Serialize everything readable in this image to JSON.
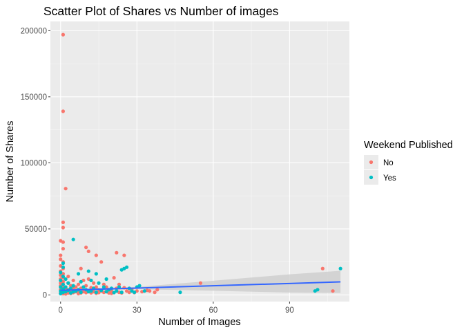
{
  "chart_data": {
    "type": "scatter",
    "title": "Scatter Plot of Shares vs Number of images",
    "xlabel": "Number of Images",
    "ylabel": "Number of Shares",
    "xlim": [
      -4,
      113.5
    ],
    "ylim": [
      -5000,
      207000
    ],
    "x_ticks": [
      0,
      30,
      60,
      90
    ],
    "x_tick_labels": [
      "0",
      "30",
      "60",
      "90"
    ],
    "y_ticks": [
      0,
      50000,
      100000,
      150000,
      200000
    ],
    "y_tick_labels": [
      "0",
      "50000",
      "100000",
      "150000",
      "200000"
    ],
    "grid": true,
    "legend": {
      "title": "Weekend Published",
      "position": "right",
      "entries": [
        {
          "label": "No",
          "color": "#F8766D"
        },
        {
          "label": "Yes",
          "color": "#00BFC4"
        }
      ]
    },
    "series": [
      {
        "name": "No",
        "color": "#F8766D",
        "points": [
          [
            1,
            197000
          ],
          [
            1,
            139000
          ],
          [
            2,
            80500
          ],
          [
            1,
            55000
          ],
          [
            1,
            51000
          ],
          [
            0,
            41000
          ],
          [
            1,
            40000
          ],
          [
            1,
            35000
          ],
          [
            0,
            30000
          ],
          [
            0,
            27000
          ],
          [
            1,
            25000
          ],
          [
            0,
            22000
          ],
          [
            1,
            20000
          ],
          [
            0,
            18000
          ],
          [
            1,
            16000
          ],
          [
            0,
            15000
          ],
          [
            1,
            13000
          ],
          [
            0,
            12000
          ],
          [
            1,
            10000
          ],
          [
            0,
            9000
          ],
          [
            1,
            8000
          ],
          [
            0,
            7000
          ],
          [
            1,
            6000
          ],
          [
            2,
            5000
          ],
          [
            0,
            4000
          ],
          [
            1,
            3000
          ],
          [
            2,
            2000
          ],
          [
            0,
            1500
          ],
          [
            1,
            1000
          ],
          [
            2,
            800
          ],
          [
            3,
            14000
          ],
          [
            3,
            9000
          ],
          [
            3,
            4000
          ],
          [
            3,
            1500
          ],
          [
            4,
            7000
          ],
          [
            4,
            3500
          ],
          [
            4,
            1200
          ],
          [
            5,
            11000
          ],
          [
            5,
            5000
          ],
          [
            5,
            1800
          ],
          [
            6,
            6000
          ],
          [
            6,
            2500
          ],
          [
            7,
            8000
          ],
          [
            7,
            3000
          ],
          [
            7,
            1000
          ],
          [
            8,
            20000
          ],
          [
            8,
            5000
          ],
          [
            8,
            1500
          ],
          [
            9,
            11000
          ],
          [
            9,
            2500
          ],
          [
            10,
            7000
          ],
          [
            10,
            1800
          ],
          [
            10,
            36000
          ],
          [
            11,
            33000
          ],
          [
            11,
            12000
          ],
          [
            11,
            3000
          ],
          [
            12,
            5500
          ],
          [
            12,
            1600
          ],
          [
            13,
            9000
          ],
          [
            13,
            2500
          ],
          [
            14,
            30000
          ],
          [
            14,
            6000
          ],
          [
            14,
            1300
          ],
          [
            15,
            4000
          ],
          [
            15,
            1800
          ],
          [
            16,
            25000
          ],
          [
            16,
            3000
          ],
          [
            17,
            8000
          ],
          [
            17,
            2000
          ],
          [
            18,
            6000
          ],
          [
            18,
            2600
          ],
          [
            19,
            4000
          ],
          [
            19,
            1500
          ],
          [
            20,
            3000
          ],
          [
            20,
            1200
          ],
          [
            21,
            13000
          ],
          [
            22,
            32000
          ],
          [
            22,
            5000
          ],
          [
            23,
            8000
          ],
          [
            23,
            2000
          ],
          [
            24,
            1500
          ],
          [
            25,
            30000
          ],
          [
            25,
            5500
          ],
          [
            26,
            3000
          ],
          [
            27,
            2000
          ],
          [
            28,
            4000
          ],
          [
            29,
            1800
          ],
          [
            30,
            3000
          ],
          [
            32,
            2500
          ],
          [
            34,
            3500
          ],
          [
            35,
            3000
          ],
          [
            37,
            2000
          ],
          [
            38,
            4000
          ],
          [
            55,
            9000
          ],
          [
            103,
            20000
          ],
          [
            107,
            3000
          ]
        ]
      },
      {
        "name": "Yes",
        "color": "#00BFC4",
        "points": [
          [
            1,
            24000
          ],
          [
            1,
            21000
          ],
          [
            0,
            17000
          ],
          [
            1,
            14000
          ],
          [
            0,
            11000
          ],
          [
            1,
            8000
          ],
          [
            0,
            6000
          ],
          [
            1,
            4500
          ],
          [
            0,
            3000
          ],
          [
            1,
            2000
          ],
          [
            0,
            1000
          ],
          [
            2,
            12000
          ],
          [
            2,
            6000
          ],
          [
            2,
            2500
          ],
          [
            3,
            9000
          ],
          [
            3,
            3500
          ],
          [
            4,
            5000
          ],
          [
            4,
            1500
          ],
          [
            5,
            42000
          ],
          [
            5,
            7000
          ],
          [
            5,
            2500
          ],
          [
            6,
            3000
          ],
          [
            7,
            16000
          ],
          [
            7,
            4000
          ],
          [
            8,
            10000
          ],
          [
            8,
            2000
          ],
          [
            9,
            6000
          ],
          [
            10,
            4000
          ],
          [
            11,
            18000
          ],
          [
            11,
            2500
          ],
          [
            12,
            11000
          ],
          [
            12,
            3000
          ],
          [
            13,
            5000
          ],
          [
            14,
            16000
          ],
          [
            14,
            2000
          ],
          [
            15,
            9000
          ],
          [
            16,
            3500
          ],
          [
            17,
            6000
          ],
          [
            18,
            12000
          ],
          [
            18,
            2500
          ],
          [
            19,
            4000
          ],
          [
            20,
            5000
          ],
          [
            21,
            1800
          ],
          [
            22,
            3000
          ],
          [
            23,
            6000
          ],
          [
            24,
            2000
          ],
          [
            24,
            19000
          ],
          [
            25,
            20000
          ],
          [
            26,
            21000
          ],
          [
            27,
            5000
          ],
          [
            28,
            3000
          ],
          [
            29,
            2000
          ],
          [
            30,
            6000
          ],
          [
            31,
            7000
          ],
          [
            33,
            3000
          ],
          [
            47,
            2000
          ],
          [
            100,
            3000
          ],
          [
            101,
            4000
          ],
          [
            110,
            20000
          ]
        ]
      }
    ],
    "smooth_line": {
      "color": "#3366FF",
      "band_color": "#cfcfcf",
      "x": [
        0,
        30,
        60,
        90,
        110
      ],
      "y": [
        3500,
        5200,
        7000,
        8700,
        9900
      ],
      "lower": [
        2600,
        4300,
        3200,
        1800,
        1500
      ],
      "upper": [
        4400,
        6100,
        10800,
        15600,
        18300
      ]
    }
  }
}
